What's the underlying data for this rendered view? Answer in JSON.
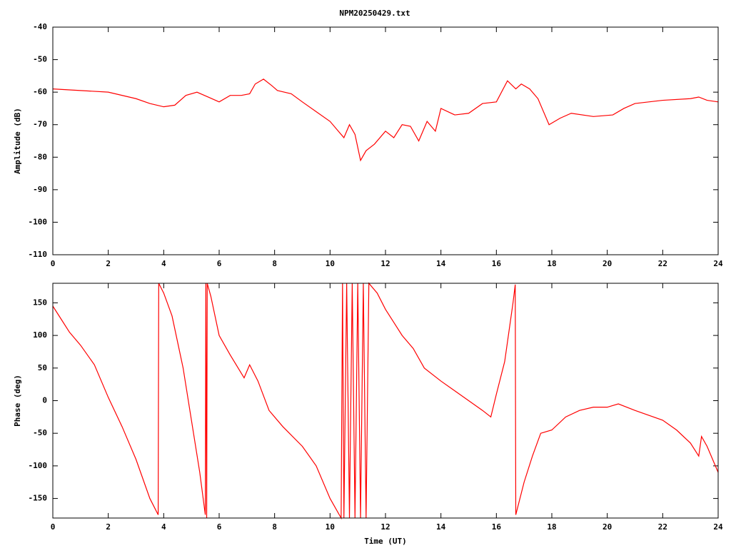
{
  "chart_data": [
    {
      "type": "line",
      "title": "NPM20250429.txt",
      "ylabel": "Amplitude (dB)",
      "color": "#ff0000",
      "x": [
        0,
        1,
        2,
        3,
        3.5,
        4,
        4.4,
        4.8,
        5.2,
        5.6,
        6,
        6.4,
        6.8,
        7.1,
        7.3,
        7.6,
        7.9,
        8.1,
        8.6,
        9,
        9.5,
        10,
        10.3,
        10.5,
        10.7,
        10.9,
        11.1,
        11.3,
        11.6,
        12,
        12.3,
        12.6,
        12.9,
        13.2,
        13.5,
        13.8,
        14,
        14.5,
        15,
        15.5,
        16,
        16.4,
        16.7,
        16.9,
        17.2,
        17.5,
        17.9,
        18.3,
        18.7,
        19.5,
        20.2,
        20.6,
        21,
        22,
        23,
        23.3,
        23.6,
        24
      ],
      "values": [
        -59,
        -59.5,
        -60,
        -62,
        -63.5,
        -64.5,
        -64,
        -61,
        -60,
        -61.5,
        -63,
        -61,
        -61,
        -60.5,
        -57.5,
        -56,
        -58,
        -59.5,
        -60.5,
        -63,
        -66,
        -69,
        -72,
        -74,
        -70,
        -73,
        -81,
        -78,
        -76,
        -72,
        -74,
        -70,
        -70.5,
        -75,
        -69,
        -72,
        -65,
        -67,
        -66.5,
        -63.5,
        -63,
        -56.5,
        -59,
        -57.5,
        -59,
        -62,
        -70,
        -68,
        -66.5,
        -67.5,
        -67,
        -65,
        -63.5,
        -62.5,
        -62,
        -61.5,
        -62.5,
        -63
      ],
      "xlim": [
        0,
        24
      ],
      "xticks": [
        0,
        2,
        4,
        6,
        8,
        10,
        12,
        14,
        16,
        18,
        20,
        22,
        24
      ],
      "ylim": [
        -110,
        -40
      ],
      "yticks": [
        -110,
        -100,
        -90,
        -80,
        -70,
        -60,
        -50,
        -40
      ]
    },
    {
      "type": "line",
      "xlabel": "Time (UT)",
      "ylabel": "Phase (deg)",
      "color": "#ff0000",
      "x": [
        0,
        0.3,
        0.6,
        1,
        1.5,
        2,
        2.5,
        3,
        3.5,
        3.8,
        3.82,
        4,
        4.3,
        4.7,
        5,
        5.3,
        5.5,
        5.52,
        5.55,
        5.57,
        5.7,
        6,
        6.4,
        6.9,
        7.1,
        7.4,
        7.8,
        8.3,
        9,
        9.5,
        10,
        10.4,
        10.45,
        10.5,
        10.6,
        10.7,
        10.8,
        10.9,
        11,
        11.1,
        11.2,
        11.3,
        11.4,
        11.7,
        12,
        12.3,
        12.6,
        13,
        13.4,
        14,
        14.5,
        15,
        15.5,
        15.8,
        16,
        16.3,
        16.6,
        16.68,
        16.7,
        17,
        17.3,
        17.6,
        18,
        18.5,
        19,
        19.5,
        20,
        20.4,
        21,
        22,
        22.5,
        23,
        23.3,
        23.4,
        23.6,
        24
      ],
      "values": [
        145,
        125,
        105,
        85,
        55,
        5,
        -40,
        -90,
        -150,
        -175,
        180,
        165,
        130,
        50,
        -30,
        -110,
        -175,
        180,
        -180,
        180,
        160,
        100,
        70,
        35,
        55,
        30,
        -15,
        -40,
        -70,
        -100,
        -150,
        -180,
        180,
        -180,
        180,
        -180,
        180,
        -180,
        180,
        -180,
        180,
        -180,
        180,
        165,
        140,
        120,
        100,
        80,
        50,
        30,
        15,
        0,
        -15,
        -25,
        10,
        60,
        150,
        178,
        -175,
        -125,
        -85,
        -50,
        -45,
        -25,
        -15,
        -10,
        -10,
        -5,
        -15,
        -30,
        -45,
        -65,
        -85,
        -55,
        -70,
        -110
      ],
      "xlim": [
        0,
        24
      ],
      "xticks": [
        0,
        2,
        4,
        6,
        8,
        10,
        12,
        14,
        16,
        18,
        20,
        22,
        24
      ],
      "ylim": [
        -180,
        180
      ],
      "yticks": [
        -150,
        -100,
        -50,
        0,
        50,
        100,
        150
      ]
    }
  ]
}
